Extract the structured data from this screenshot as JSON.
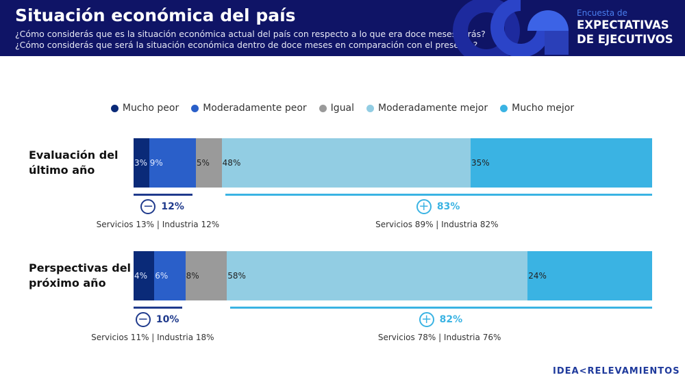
{
  "header": {
    "title": "Situación económica del país",
    "question1": "¿Cómo considerás que es la situación económica actual del país con respecto a lo que era doce meses atrás?",
    "question2": "¿Cómo considerás que será la situación económica dentro de doce meses en comparación con el presente?",
    "brand_small": "Encuesta de",
    "brand_line1": "EXPECTATIVAS",
    "brand_line2": "DE EJECUTIVOS"
  },
  "chart_data": {
    "type": "bar",
    "orientation": "horizontal",
    "stacked": true,
    "legend_position": "top",
    "categories": [
      "Evaluación del último año",
      "Perspectivas del próximo año"
    ],
    "series": [
      {
        "name": "Mucho peor",
        "color": "#0a2a78",
        "values": [
          3,
          4
        ]
      },
      {
        "name": "Moderadamente peor",
        "color": "#2a5fc9",
        "values": [
          9,
          6
        ]
      },
      {
        "name": "Igual",
        "color": "#9a9a9a",
        "values": [
          5,
          8
        ]
      },
      {
        "name": "Moderadamente mejor",
        "color": "#92cde3",
        "values": [
          48,
          58
        ]
      },
      {
        "name": "Mucho mejor",
        "color": "#3ab3e3",
        "values": [
          35,
          24
        ]
      }
    ],
    "data_labels": [
      [
        "3%",
        "9%",
        "5%",
        "48%",
        "35%"
      ],
      [
        "4%",
        "6%",
        "8%",
        "58%",
        "24%"
      ]
    ],
    "summaries": [
      {
        "negative": "12%",
        "negative_detail": "Servicios 13% | Industria 12%",
        "positive": "83%",
        "positive_detail": "Servicios 89% | Industria 82%"
      },
      {
        "negative": "10%",
        "negative_detail": "Servicios 11% | Industria 18%",
        "positive": "82%",
        "positive_detail": "Servicios 78% | Industria 76%"
      }
    ]
  },
  "row_labels": [
    [
      "Evaluación del",
      "último año"
    ],
    [
      "Perspectivas del",
      "próximo año"
    ]
  ],
  "footer": {
    "logo": "IDEA<RELEVAMIENTOS"
  }
}
